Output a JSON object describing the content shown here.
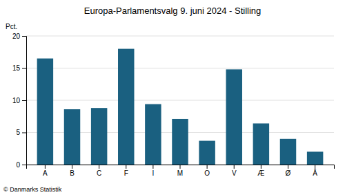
{
  "chart_data": {
    "type": "bar",
    "title": "Europa-Parlamentsvalg 9. juni 2024 - Stilling",
    "categories": [
      "A",
      "B",
      "C",
      "F",
      "I",
      "M",
      "O",
      "V",
      "Æ",
      "Ø",
      "Å"
    ],
    "values": [
      16.5,
      8.6,
      8.8,
      18.0,
      9.4,
      7.1,
      3.7,
      14.8,
      6.4,
      4.0,
      2.0
    ],
    "color": "#1a6080",
    "ylabel": "Pct.",
    "ylim": [
      0,
      20
    ],
    "yticks": [
      0,
      5,
      10,
      15,
      20
    ],
    "grid": true,
    "footnote": "© Danmarks Statistik"
  }
}
